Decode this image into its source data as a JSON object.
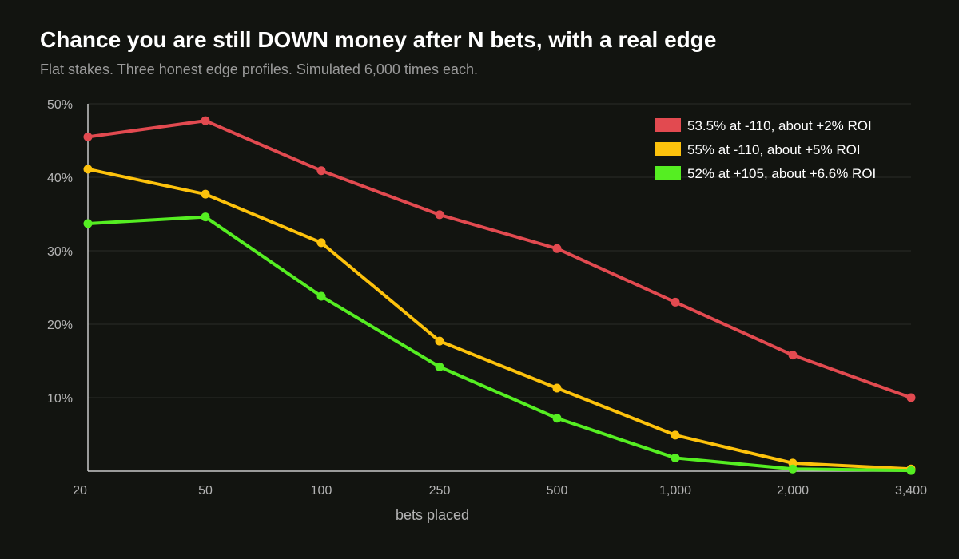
{
  "chart_data": {
    "type": "line",
    "title": "Chance you are still DOWN money after N bets, with a real edge",
    "subtitle": "Flat stakes. Three honest edge profiles. Simulated 6,000 times each.",
    "xlabel": "bets placed",
    "ylabel": "",
    "x_scale": "categorical",
    "categories": [
      "20",
      "50",
      "100",
      "250",
      "500",
      "1,000",
      "2,000",
      "3,400"
    ],
    "ylim": [
      0,
      50
    ],
    "yticks": [
      10,
      20,
      30,
      40,
      50
    ],
    "ytick_labels": [
      "10%",
      "20%",
      "30%",
      "40%",
      "50%"
    ],
    "grid": true,
    "legend_position": "top-right",
    "series": [
      {
        "name": "53.5% at -110, about +2% ROI",
        "color": "#e24a50",
        "values": [
          45.5,
          47.7,
          40.9,
          34.9,
          30.3,
          23.0,
          15.8,
          10.0
        ]
      },
      {
        "name": "55% at -110, about +5% ROI",
        "color": "#fdc20c",
        "values": [
          41.1,
          37.7,
          31.1,
          17.7,
          11.3,
          4.9,
          1.1,
          0.3
        ]
      },
      {
        "name": "52% at +105, about +6.6% ROI",
        "color": "#55ee22",
        "values": [
          33.7,
          34.6,
          23.8,
          14.2,
          7.2,
          1.8,
          0.3,
          0.1
        ]
      }
    ]
  }
}
